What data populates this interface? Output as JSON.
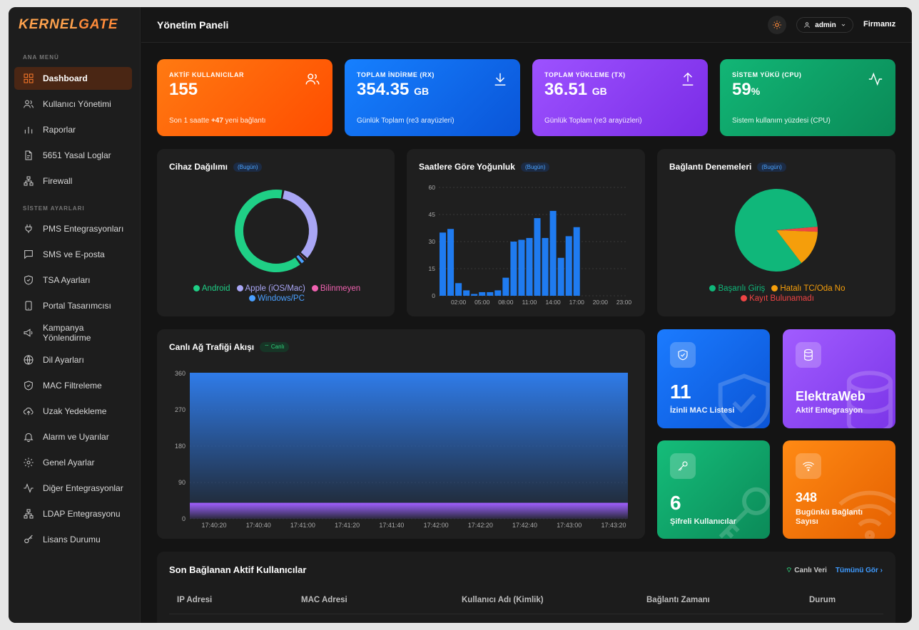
{
  "brand": {
    "part1": "KERNEL",
    "part2": "GATE"
  },
  "sidebar": {
    "section_main": "ANA MENÜ",
    "section_system": "SİSTEM AYARLARI",
    "main_items": [
      {
        "label": "Dashboard",
        "icon": "dashboard-icon"
      },
      {
        "label": "Kullanıcı Yönetimi",
        "icon": "users-icon"
      },
      {
        "label": "Raporlar",
        "icon": "bar-chart-icon"
      },
      {
        "label": "5651 Yasal Loglar",
        "icon": "file-icon"
      },
      {
        "label": "Firewall",
        "icon": "network-icon"
      }
    ],
    "system_items": [
      {
        "label": "PMS Entegrasyonları",
        "icon": "plug-icon"
      },
      {
        "label": "SMS ve E-posta",
        "icon": "message-icon"
      },
      {
        "label": "TSA Ayarları",
        "icon": "shield-icon"
      },
      {
        "label": "Portal Tasarımcısı",
        "icon": "tablet-icon"
      },
      {
        "label": "Kampanya Yönlendirme",
        "icon": "megaphone-icon"
      },
      {
        "label": "Dil Ayarları",
        "icon": "globe-icon"
      },
      {
        "label": "MAC Filtreleme",
        "icon": "shield-check-icon"
      },
      {
        "label": "Uzak Yedekleme",
        "icon": "cloud-upload-icon"
      },
      {
        "label": "Alarm ve Uyarılar",
        "icon": "bell-icon"
      },
      {
        "label": "Genel Ayarlar",
        "icon": "gear-icon"
      },
      {
        "label": "Diğer Entegrasyonlar",
        "icon": "activity-icon"
      },
      {
        "label": "LDAP Entegrasyonu",
        "icon": "network-icon"
      },
      {
        "label": "Lisans Durumu",
        "icon": "key-icon"
      }
    ]
  },
  "header": {
    "title": "Yönetim Paneli",
    "user": "admin",
    "firm": "Firmanız"
  },
  "stats": [
    {
      "label": "AKTİF KULLANICILAR",
      "value": "155",
      "unit": "",
      "sub_pre": "Son 1 saatte ",
      "sub_bold": "+47",
      "sub_post": " yeni bağlantı"
    },
    {
      "label": "TOPLAM İNDİRME (RX)",
      "value": "354.35",
      "unit": "GB",
      "sub_pre": "Günlük Toplam (re3 arayüzleri)",
      "sub_bold": "",
      "sub_post": ""
    },
    {
      "label": "TOPLAM YÜKLEME (TX)",
      "value": "36.51",
      "unit": "GB",
      "sub_pre": "Günlük Toplam (re3 arayüzleri)",
      "sub_bold": "",
      "sub_post": ""
    },
    {
      "label": "SİSTEM YÜKÜ (CPU)",
      "value": "59",
      "unit": "%",
      "sub_pre": "Sistem kullanım yüzdesi (CPU)",
      "sub_bold": "",
      "sub_post": ""
    }
  ],
  "today_badge": "(Bugün)",
  "live_badge": "Canlı",
  "chart_data": [
    {
      "type": "pie",
      "title": "Cihaz Dağılımı",
      "labels": [
        "Android",
        "Apple (iOS/Mac)",
        "Bilinmeyen",
        "Windows/PC"
      ],
      "values": [
        63,
        34,
        1,
        2
      ],
      "colors": [
        "#1fcf86",
        "#a9a6f5",
        "#f062b0",
        "#4aa0ff"
      ]
    },
    {
      "type": "bar",
      "title": "Saatlere Göre Yoğunluk",
      "categories": [
        "00:00",
        "01:00",
        "02:00",
        "03:00",
        "04:00",
        "05:00",
        "06:00",
        "07:00",
        "08:00",
        "09:00",
        "10:00",
        "11:00",
        "12:00",
        "13:00",
        "14:00",
        "15:00",
        "16:00",
        "17:00"
      ],
      "tick_labels": [
        "02:00",
        "05:00",
        "08:00",
        "11:00",
        "14:00",
        "17:00",
        "20:00",
        "23:00"
      ],
      "values": [
        35,
        37,
        7,
        3,
        1,
        2,
        2,
        3,
        10,
        30,
        31,
        32,
        43,
        32,
        47,
        21,
        33,
        38
      ],
      "ylim": [
        0,
        60
      ],
      "yticks": [
        0,
        15,
        30,
        45,
        60
      ]
    },
    {
      "type": "pie",
      "title": "Bağlantı Denemeleri",
      "labels": [
        "Başarılı Giriş",
        "Hatalı TC/Oda No",
        "Kayıt Bulunamadı"
      ],
      "values": [
        84,
        14,
        2
      ],
      "colors": [
        "#10b77a",
        "#f59e0b",
        "#ef4444"
      ]
    },
    {
      "type": "area",
      "title": "Canlı Ağ Trafiği Akışı",
      "x": [
        "17:40:20",
        "17:40:40",
        "17:41:00",
        "17:41:20",
        "17:41:40",
        "17:42:00",
        "17:42:20",
        "17:42:40",
        "17:43:00",
        "17:43:20"
      ],
      "series": [
        {
          "values": [
            360,
            360,
            360,
            360,
            360,
            360,
            360,
            360,
            360,
            360
          ],
          "color": "#2f7be8"
        },
        {
          "values": [
            38,
            38,
            38,
            38,
            38,
            38,
            38,
            38,
            38,
            38
          ],
          "color": "#9b5cf6"
        }
      ],
      "ylim": [
        0,
        360
      ],
      "yticks": [
        0,
        90,
        180,
        270,
        360
      ]
    }
  ],
  "tiles": [
    {
      "big": "11",
      "sub": "İzinli MAC Listesi"
    },
    {
      "big": "ElektraWeb",
      "sub": "Aktif Entegrasyon"
    },
    {
      "big": "6",
      "sub": "Şifreli Kullanıcılar"
    },
    {
      "big": "348",
      "sub": "Bugünkü Bağlantı Sayısı"
    }
  ],
  "table": {
    "title": "Son Bağlanan Aktif Kullanıcılar",
    "live": "Canlı Veri",
    "view_all": "Tümünü Gör",
    "columns": [
      "IP Adresi",
      "MAC Adresi",
      "Kullanıcı Adı (Kimlik)",
      "Bağlantı Zamanı",
      "Durum"
    ]
  },
  "colors": {
    "accent": "#ff6b1a",
    "orange": "#ff5a00",
    "blue": "#0f6fe8",
    "purple": "#8b3ff0",
    "green": "#0ea86a"
  }
}
